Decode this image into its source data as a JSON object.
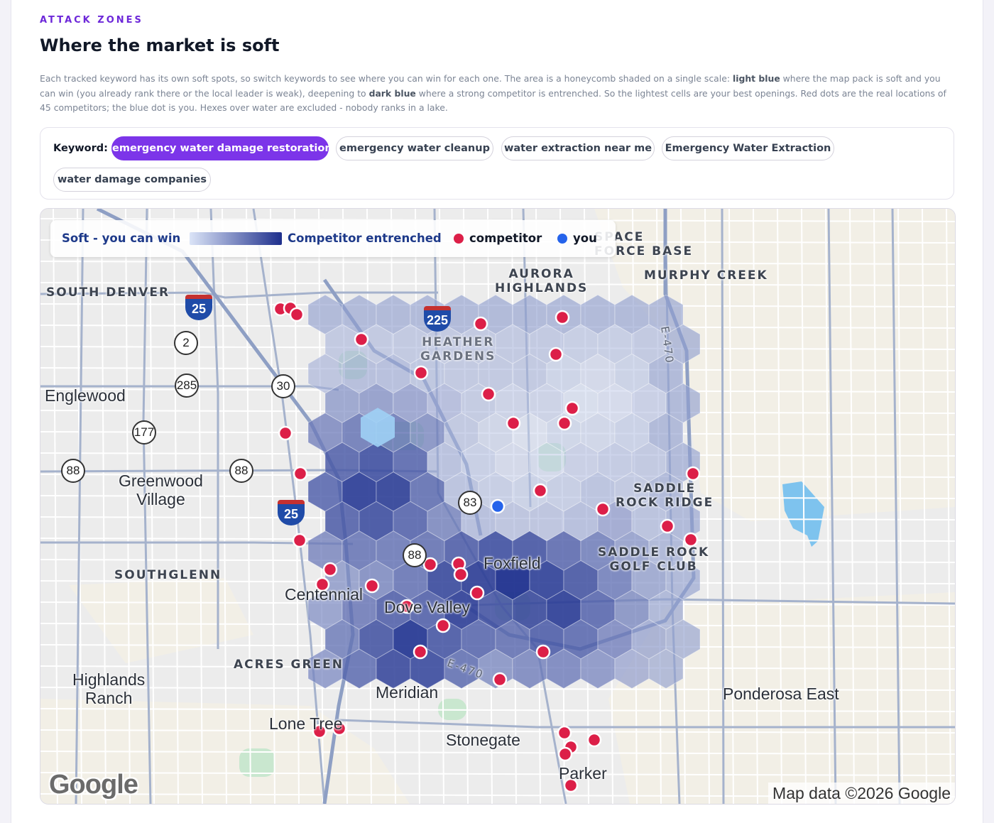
{
  "section": {
    "eyebrow": "ATTACK ZONES",
    "title": "Where the market is soft",
    "description": {
      "part1": "Each tracked keyword has its own soft spots, so switch keywords to see where you can win for each one. The area is a honeycomb shaded on a single scale: ",
      "light_blue": "light blue",
      "part2": " where the map pack is soft and you can win (you already rank there or the local leader is weak), deepening to ",
      "dark_blue": "dark blue",
      "part3": " where a strong competitor is entrenched. So the lightest cells are your best openings. Red dots are the real locations of 45 competitors; the blue dot is you. Hexes over water are excluded - nobody ranks in a lake."
    }
  },
  "keywords": {
    "label": "Keyword:",
    "items": [
      {
        "label": "emergency water damage restoration",
        "active": true
      },
      {
        "label": "emergency water cleanup",
        "active": false
      },
      {
        "label": "water extraction near me",
        "active": false
      },
      {
        "label": "Emergency Water Extraction",
        "active": false
      },
      {
        "label": "water damage companies",
        "active": false
      }
    ]
  },
  "map": {
    "legend": {
      "soft_label": "Soft - you can win",
      "entrenched_label": "Competitor entrenched",
      "competitor_label": "competitor",
      "you_label": "you",
      "gradient_from": "#dbe4f7",
      "gradient_to": "#1e2f8c",
      "competitor_color": "#dc1f48",
      "you_color": "#2563eb"
    },
    "region_labels": [
      "SOUTH DENVER",
      "AURORA\nHIGHLANDS",
      "MURPHY CREEK",
      "HEATHER\nGARDENS",
      "SADDLE\nROCK RIDGE",
      "SADDLE ROCK\nGOLF CLUB",
      "SOUTHGLENN",
      "ACRES GREEN",
      "SPACE\nFORCE BASE"
    ],
    "city_labels": [
      "Englewood",
      "Greenwood\nVillage",
      "Centennial",
      "Dove Valley",
      "Foxfield",
      "Highlands\nRanch",
      "Meridian",
      "Lone Tree",
      "Stonegate",
      "Parker",
      "Ponderosa East"
    ],
    "route_shields": [
      "25",
      "2",
      "285",
      "30",
      "177",
      "88",
      "88",
      "25",
      "83",
      "88",
      "225",
      "E-470",
      "E-470"
    ],
    "competitor_count": 45,
    "google_logo": "Google",
    "attribution": "Map data ©2026 Google"
  }
}
